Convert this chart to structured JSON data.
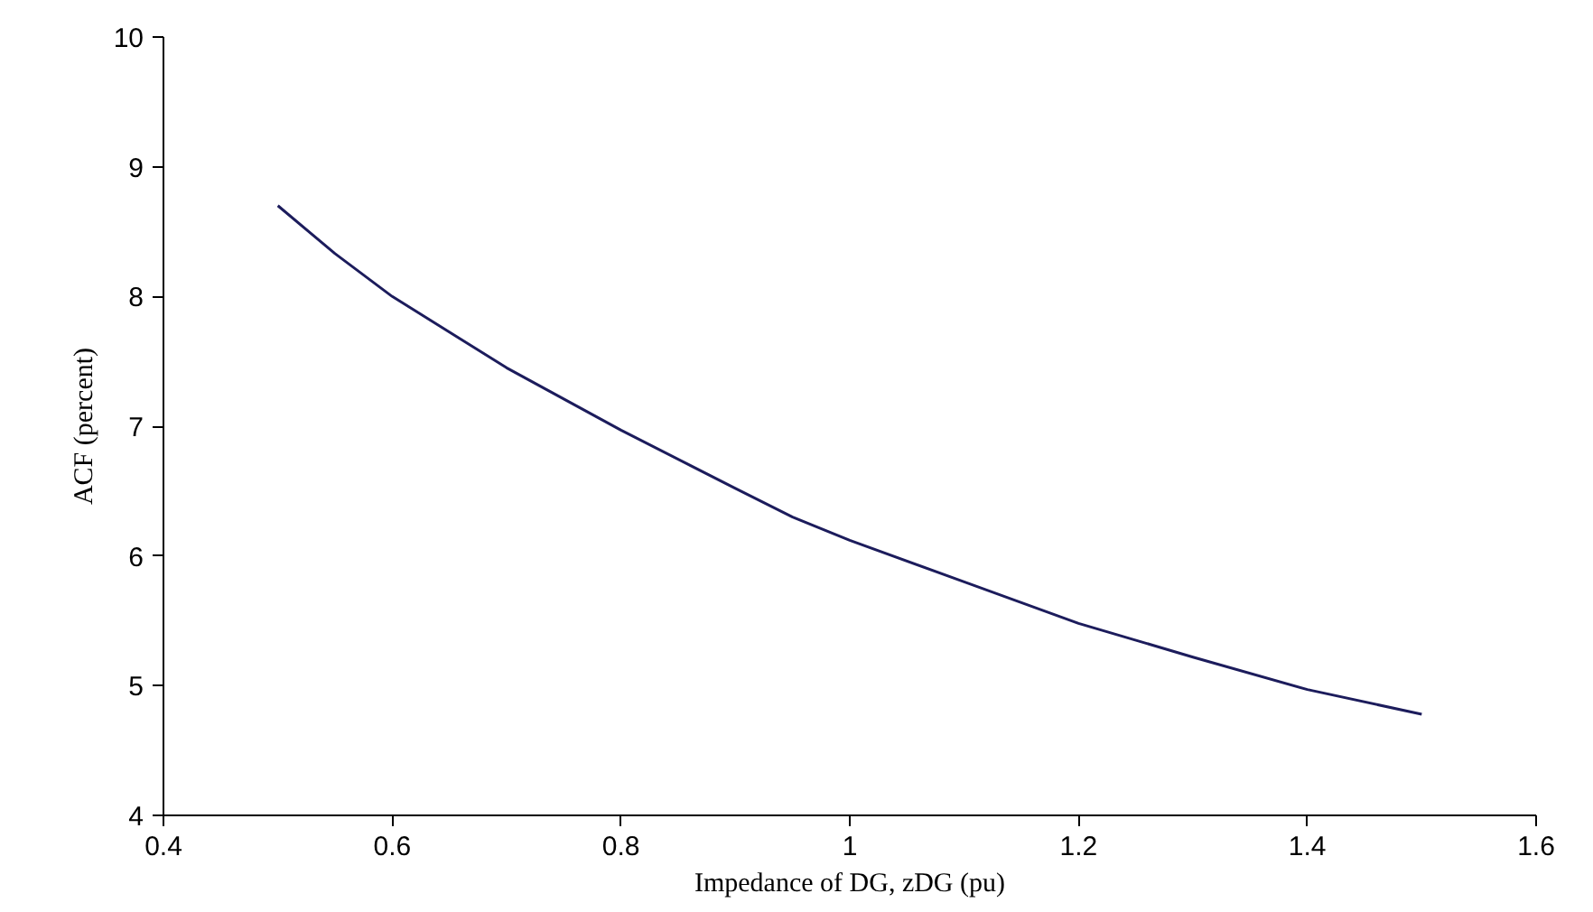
{
  "chart_data": {
    "type": "line",
    "xlabel": "Impedance of DG, zDG (pu)",
    "ylabel": "ACF (percent)",
    "x": [
      0.5,
      0.55,
      0.6,
      0.7,
      0.8,
      0.9,
      0.95,
      1.0,
      1.1,
      1.2,
      1.3,
      1.4,
      1.5
    ],
    "series": [
      {
        "color": "#1c1c5c",
        "values": [
          8.7,
          8.33,
          8.0,
          7.45,
          6.97,
          6.52,
          6.3,
          6.12,
          5.8,
          5.48,
          5.22,
          4.97,
          4.78
        ]
      }
    ],
    "xlim": [
      0.4,
      1.6
    ],
    "xticks": [
      {
        "value": 0.4,
        "label": "0.4"
      },
      {
        "value": 0.6,
        "label": "0.6"
      },
      {
        "value": 0.8,
        "label": "0.8"
      },
      {
        "value": 1,
        "label": "1"
      },
      {
        "value": 1.2,
        "label": "1.2"
      },
      {
        "value": 1.4,
        "label": "1.4"
      },
      {
        "value": 1.6,
        "label": "1.6"
      }
    ],
    "ylim": [
      4,
      10
    ],
    "yticks": [
      4,
      5,
      6,
      7,
      8,
      9,
      10
    ],
    "grid": false,
    "marker": "none",
    "line_style": "solid"
  }
}
